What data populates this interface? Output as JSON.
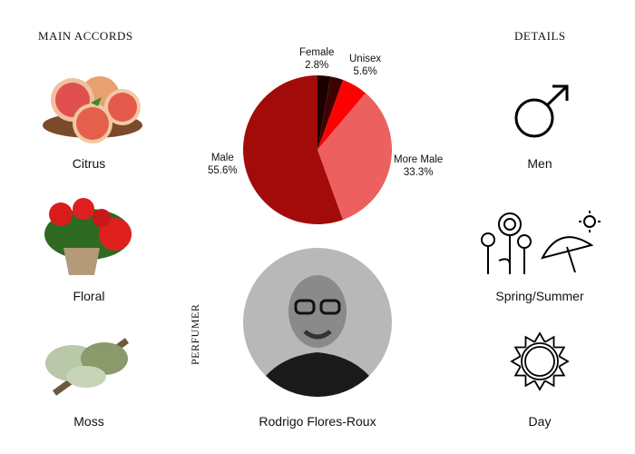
{
  "left": {
    "heading": "MAIN ACCORDS",
    "accords": [
      {
        "label": "Citrus",
        "icon": "citrus-fruit-image"
      },
      {
        "label": "Floral",
        "icon": "geranium-flower-image"
      },
      {
        "label": "Moss",
        "icon": "moss-image"
      }
    ]
  },
  "right": {
    "heading": "DETAILS",
    "items": [
      {
        "label": "Men",
        "icon": "male-symbol-icon"
      },
      {
        "label": "Spring/Summer",
        "icon": "flowers-umbrella-sun-icon"
      },
      {
        "label": "Day",
        "icon": "sun-icon"
      }
    ]
  },
  "perfumer": {
    "heading": "PERFUMER",
    "name": "Rodrigo Flores-Roux"
  },
  "chart_data": {
    "type": "pie",
    "start": "top",
    "direction": "clockwise",
    "slices": [
      {
        "label": "Female",
        "value": 2.8,
        "value_label": "2.8%",
        "color": "#1c0000"
      },
      {
        "label": "",
        "value": 2.8,
        "value_label": "",
        "color": "#3f0202"
      },
      {
        "label": "Unisex",
        "value": 5.6,
        "value_label": "5.6%",
        "color": "#ff0000"
      },
      {
        "label": "More Male",
        "value": 33.3,
        "value_label": "33.3%",
        "color": "#ec6060"
      },
      {
        "label": "Male",
        "value": 55.6,
        "value_label": "55.6%",
        "color": "#a30b0b"
      }
    ]
  }
}
